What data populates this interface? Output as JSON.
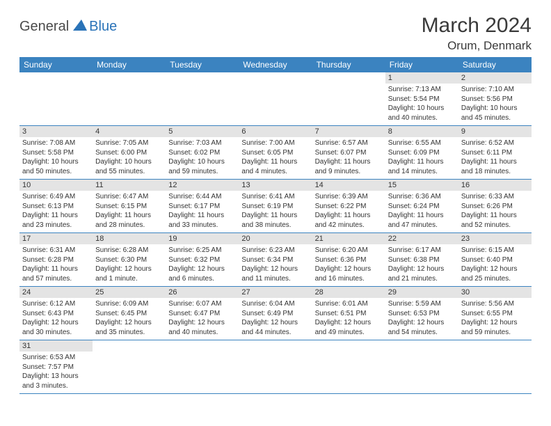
{
  "brand": {
    "general": "General",
    "blue": "Blue"
  },
  "title": {
    "month": "March 2024",
    "location": "Orum, Denmark"
  },
  "columns": [
    "Sunday",
    "Monday",
    "Tuesday",
    "Wednesday",
    "Thursday",
    "Friday",
    "Saturday"
  ],
  "weeks": [
    [
      null,
      null,
      null,
      null,
      null,
      {
        "n": "1",
        "sr": "7:13 AM",
        "ss": "5:54 PM",
        "dh": "10",
        "dm": "40"
      },
      {
        "n": "2",
        "sr": "7:10 AM",
        "ss": "5:56 PM",
        "dh": "10",
        "dm": "45"
      }
    ],
    [
      {
        "n": "3",
        "sr": "7:08 AM",
        "ss": "5:58 PM",
        "dh": "10",
        "dm": "50"
      },
      {
        "n": "4",
        "sr": "7:05 AM",
        "ss": "6:00 PM",
        "dh": "10",
        "dm": "55"
      },
      {
        "n": "5",
        "sr": "7:03 AM",
        "ss": "6:02 PM",
        "dh": "10",
        "dm": "59"
      },
      {
        "n": "6",
        "sr": "7:00 AM",
        "ss": "6:05 PM",
        "dh": "11",
        "dm": "4"
      },
      {
        "n": "7",
        "sr": "6:57 AM",
        "ss": "6:07 PM",
        "dh": "11",
        "dm": "9"
      },
      {
        "n": "8",
        "sr": "6:55 AM",
        "ss": "6:09 PM",
        "dh": "11",
        "dm": "14"
      },
      {
        "n": "9",
        "sr": "6:52 AM",
        "ss": "6:11 PM",
        "dh": "11",
        "dm": "18"
      }
    ],
    [
      {
        "n": "10",
        "sr": "6:49 AM",
        "ss": "6:13 PM",
        "dh": "11",
        "dm": "23"
      },
      {
        "n": "11",
        "sr": "6:47 AM",
        "ss": "6:15 PM",
        "dh": "11",
        "dm": "28"
      },
      {
        "n": "12",
        "sr": "6:44 AM",
        "ss": "6:17 PM",
        "dh": "11",
        "dm": "33"
      },
      {
        "n": "13",
        "sr": "6:41 AM",
        "ss": "6:19 PM",
        "dh": "11",
        "dm": "38"
      },
      {
        "n": "14",
        "sr": "6:39 AM",
        "ss": "6:22 PM",
        "dh": "11",
        "dm": "42"
      },
      {
        "n": "15",
        "sr": "6:36 AM",
        "ss": "6:24 PM",
        "dh": "11",
        "dm": "47"
      },
      {
        "n": "16",
        "sr": "6:33 AM",
        "ss": "6:26 PM",
        "dh": "11",
        "dm": "52"
      }
    ],
    [
      {
        "n": "17",
        "sr": "6:31 AM",
        "ss": "6:28 PM",
        "dh": "11",
        "dm": "57"
      },
      {
        "n": "18",
        "sr": "6:28 AM",
        "ss": "6:30 PM",
        "dh": "12",
        "dm": "1"
      },
      {
        "n": "19",
        "sr": "6:25 AM",
        "ss": "6:32 PM",
        "dh": "12",
        "dm": "6"
      },
      {
        "n": "20",
        "sr": "6:23 AM",
        "ss": "6:34 PM",
        "dh": "12",
        "dm": "11"
      },
      {
        "n": "21",
        "sr": "6:20 AM",
        "ss": "6:36 PM",
        "dh": "12",
        "dm": "16"
      },
      {
        "n": "22",
        "sr": "6:17 AM",
        "ss": "6:38 PM",
        "dh": "12",
        "dm": "21"
      },
      {
        "n": "23",
        "sr": "6:15 AM",
        "ss": "6:40 PM",
        "dh": "12",
        "dm": "25"
      }
    ],
    [
      {
        "n": "24",
        "sr": "6:12 AM",
        "ss": "6:43 PM",
        "dh": "12",
        "dm": "30"
      },
      {
        "n": "25",
        "sr": "6:09 AM",
        "ss": "6:45 PM",
        "dh": "12",
        "dm": "35"
      },
      {
        "n": "26",
        "sr": "6:07 AM",
        "ss": "6:47 PM",
        "dh": "12",
        "dm": "40"
      },
      {
        "n": "27",
        "sr": "6:04 AM",
        "ss": "6:49 PM",
        "dh": "12",
        "dm": "44"
      },
      {
        "n": "28",
        "sr": "6:01 AM",
        "ss": "6:51 PM",
        "dh": "12",
        "dm": "49"
      },
      {
        "n": "29",
        "sr": "5:59 AM",
        "ss": "6:53 PM",
        "dh": "12",
        "dm": "54"
      },
      {
        "n": "30",
        "sr": "5:56 AM",
        "ss": "6:55 PM",
        "dh": "12",
        "dm": "59"
      }
    ],
    [
      {
        "n": "31",
        "sr": "6:53 AM",
        "ss": "7:57 PM",
        "dh": "13",
        "dm": "3"
      },
      null,
      null,
      null,
      null,
      null,
      null
    ]
  ],
  "labels": {
    "sunrise_prefix": "Sunrise: ",
    "sunset_prefix": "Sunset: ",
    "daylight_prefix": "Daylight: ",
    "hours_word": " hours",
    "and_word": "and ",
    "minutes_word": " minutes.",
    "minute_word": " minute."
  },
  "style": {
    "header_bg": "#3b83c0",
    "header_fg": "#ffffff",
    "daynum_bg": "#e4e4e4",
    "border_color": "#3b83c0",
    "text_color": "#333333",
    "title_color": "#3a3a3a"
  }
}
